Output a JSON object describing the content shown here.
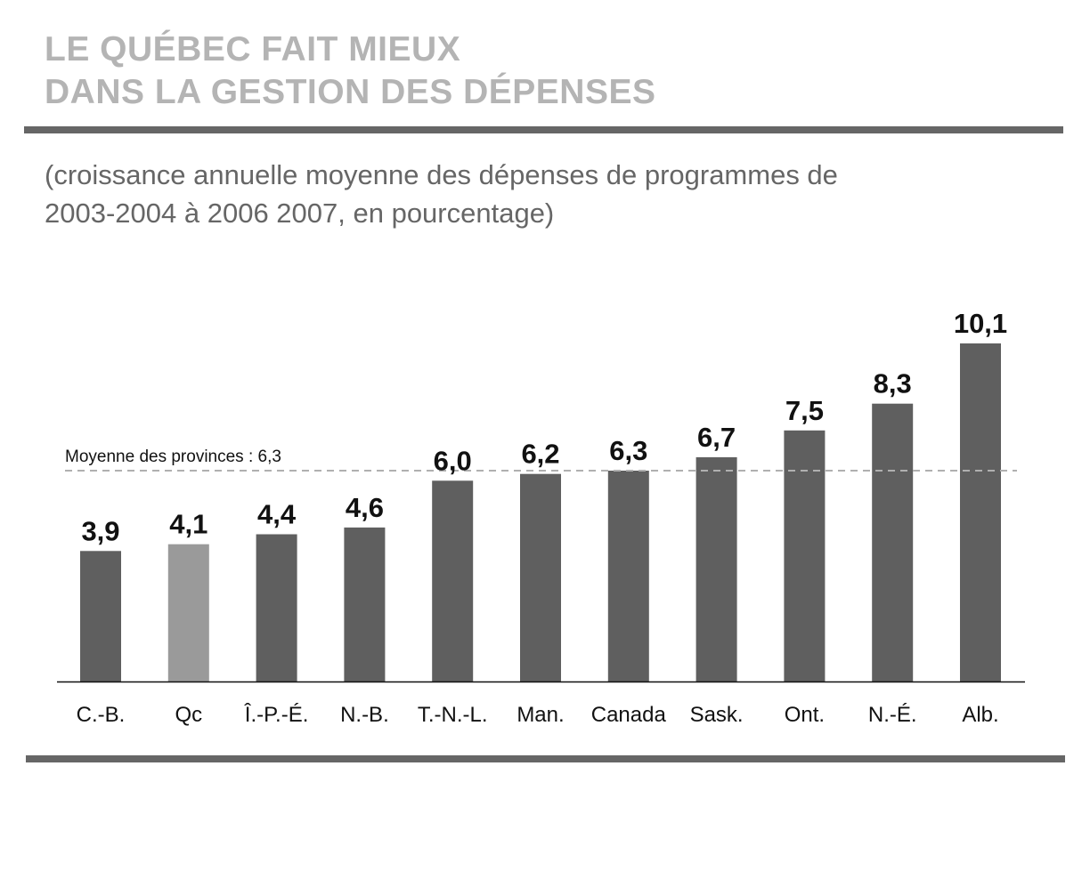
{
  "header": {
    "title_line1": "LE QUÉBEC FAIT MIEUX",
    "title_line2": "DANS LA GESTION DES DÉPENSES",
    "subtitle_line1": "(croissance annuelle moyenne des dépenses de programmes de",
    "subtitle_line2": "2003-2004 à 2006 2007, en pourcentage)"
  },
  "colors": {
    "bar": "#5f5f5f",
    "bar_highlight": "#9a9a9a",
    "reference_line": "#b0b0b0",
    "title": "#b4b4b4",
    "rule": "#666666"
  },
  "chart_data": {
    "type": "bar",
    "title": "",
    "xlabel": "",
    "ylabel": "",
    "ylim": [
      0,
      10.1
    ],
    "grid": false,
    "categories": [
      "C.-B.",
      "Qc",
      "Î.-P.-É.",
      "N.-B.",
      "T.-N.-L.",
      "Man.",
      "Canada",
      "Sask.",
      "Ont.",
      "N.-É.",
      "Alb."
    ],
    "values": [
      3.9,
      4.1,
      4.4,
      4.6,
      6.0,
      6.2,
      6.3,
      6.7,
      7.5,
      8.3,
      10.1
    ],
    "value_labels": [
      "3,9",
      "4,1",
      "4,4",
      "4,6",
      "6,0",
      "6,2",
      "6,3",
      "6,7",
      "7,5",
      "8,3",
      "10,1"
    ],
    "highlight_category": "Qc",
    "reference_line": {
      "value": 6.3,
      "label": "Moyenne des provinces : 6,3",
      "style": "dashed"
    }
  }
}
